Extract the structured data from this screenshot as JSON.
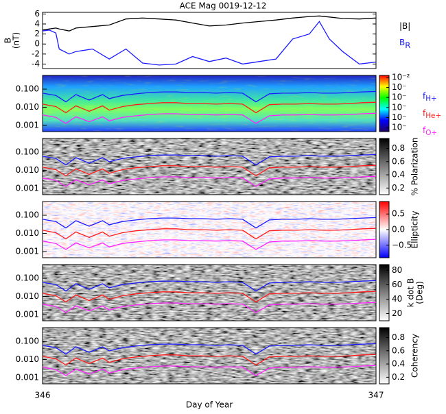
{
  "chart_data": [
    {
      "type": "line",
      "title": "ACE Mag 0019-12-12",
      "y_label": [
        "B",
        "(nT)"
      ],
      "x": [
        346.0,
        346.02,
        346.04,
        346.05,
        346.08,
        346.1,
        346.15,
        346.2,
        346.25,
        346.3,
        346.35,
        346.4,
        346.45,
        346.5,
        346.55,
        346.6,
        346.65,
        346.7,
        346.75,
        346.8,
        346.83,
        346.86,
        346.9,
        346.95,
        347.0
      ],
      "series": [
        {
          "name": "|B|",
          "color": "#000000",
          "values": [
            2.8,
            3.0,
            3.2,
            3.0,
            2.6,
            3.2,
            3.5,
            3.8,
            5.0,
            5.2,
            5.0,
            4.8,
            4.2,
            3.6,
            3.8,
            4.2,
            4.5,
            4.8,
            5.2,
            5.5,
            5.6,
            5.4,
            5.1,
            5.0,
            5.2
          ]
        },
        {
          "name": "B",
          "sub": "R",
          "color": "#1a1aff",
          "values": [
            2.6,
            2.8,
            2.2,
            -1.0,
            -2.0,
            -1.5,
            -1.0,
            -3.0,
            -1.0,
            -3.8,
            -4.2,
            -4.0,
            -2.5,
            -3.5,
            -2.8,
            -4.0,
            -3.5,
            -3.0,
            1.0,
            2.0,
            4.5,
            1.0,
            -1.5,
            -4.0,
            -3.6
          ]
        }
      ],
      "ylim": [
        -4.9,
        6.33
      ],
      "yticks": [
        -4,
        -2,
        0,
        2,
        4,
        6
      ]
    },
    {
      "type": "spectrogram",
      "log_y": true,
      "ylim": [
        0.00046,
        0.57
      ],
      "yticks": [
        {
          "value": 0.001,
          "label": "0.001"
        },
        {
          "value": 0.01,
          "label": "0.010"
        },
        {
          "value": 0.1,
          "label": "0.100"
        }
      ],
      "xlim": [
        346,
        347
      ],
      "xticks": [
        346,
        347
      ],
      "x_label": "Day of Year",
      "x": [
        346.0,
        346.04,
        346.07,
        346.1,
        346.14,
        346.18,
        346.2,
        346.24,
        346.28,
        346.32,
        346.36,
        346.4,
        346.44,
        346.48,
        346.52,
        346.56,
        346.6,
        346.64,
        346.68,
        346.72,
        346.76,
        346.8,
        346.84,
        346.88,
        346.92,
        346.96,
        347.0
      ],
      "series": [
        {
          "name": "f",
          "sub": "H+",
          "color": "#1a1aff",
          "values": [
            0.06,
            0.045,
            0.02,
            0.05,
            0.025,
            0.05,
            0.03,
            0.045,
            0.055,
            0.065,
            0.07,
            0.07,
            0.065,
            0.065,
            0.06,
            0.065,
            0.06,
            0.02,
            0.055,
            0.06,
            0.06,
            0.065,
            0.06,
            0.06,
            0.065,
            0.07,
            0.075
          ]
        },
        {
          "name": "f",
          "sub": "He+",
          "color": "#ff1a1a",
          "values": [
            0.015,
            0.011,
            0.005,
            0.012,
            0.006,
            0.012,
            0.007,
            0.011,
            0.014,
            0.016,
            0.018,
            0.018,
            0.016,
            0.016,
            0.015,
            0.016,
            0.015,
            0.005,
            0.014,
            0.015,
            0.015,
            0.016,
            0.015,
            0.015,
            0.016,
            0.018,
            0.019
          ]
        },
        {
          "name": "f",
          "sub": "O+",
          "color": "#ff22ff",
          "values": [
            0.0038,
            0.0028,
            0.0013,
            0.003,
            0.0016,
            0.003,
            0.0018,
            0.0028,
            0.0034,
            0.004,
            0.0044,
            0.0044,
            0.004,
            0.004,
            0.0038,
            0.004,
            0.0038,
            0.0013,
            0.0034,
            0.0038,
            0.0038,
            0.004,
            0.0038,
            0.0038,
            0.004,
            0.0044,
            0.0047
          ]
        }
      ],
      "panels": [
        {
          "colormap": "rainbow",
          "clim": [
            -7.4,
            -1.8
          ],
          "cticks": [
            {
              "value": -2,
              "label": "10⁻²"
            },
            {
              "value": -3,
              "label": "10⁻"
            },
            {
              "value": -4,
              "label": "10⁻"
            },
            {
              "value": -5,
              "label": "10⁻"
            },
            {
              "value": -6,
              "label": "10⁻"
            },
            {
              "value": -7,
              "label": "10⁻"
            }
          ]
        },
        {
          "colormap": "gray",
          "clim": [
            0.1,
            0.95
          ],
          "cticks": [
            0.2,
            0.4,
            0.6,
            0.8
          ],
          "label": [
            "% Polarization"
          ]
        },
        {
          "colormap": "bwr",
          "clim": [
            -0.9,
            0.9
          ],
          "cticks": [
            {
              "value": -0.5,
              "label": "−0.5"
            },
            {
              "value": 0,
              "label": "0.0"
            },
            {
              "value": 0.5,
              "label": "0.5"
            }
          ],
          "label": [
            "Ellipticity"
          ]
        },
        {
          "colormap": "gray",
          "clim": [
            10,
            88
          ],
          "cticks": [
            20,
            40,
            60,
            80
          ],
          "label": [
            "k dot B",
            "(Deg)"
          ]
        },
        {
          "colormap": "gray",
          "clim": [
            0.1,
            0.95
          ],
          "cticks": [
            0.2,
            0.4,
            0.6,
            0.8
          ],
          "label": [
            "Coherency"
          ]
        }
      ]
    }
  ]
}
